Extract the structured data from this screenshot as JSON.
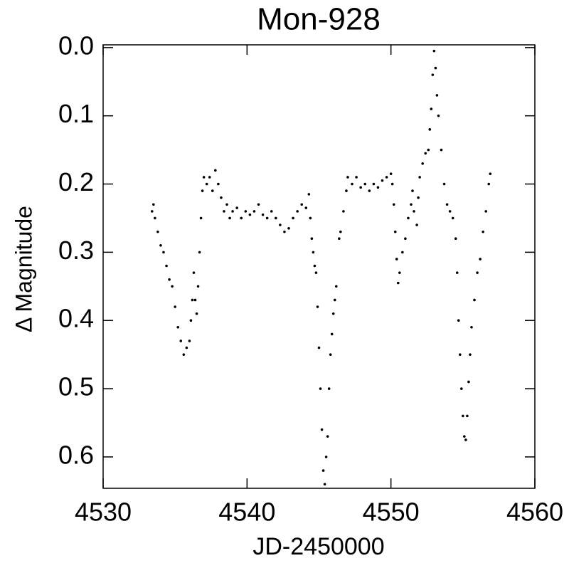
{
  "chart_data": {
    "type": "scatter",
    "title": "Mon-928",
    "xlabel": "JD-2450000",
    "ylabel": "Δ Magnitude",
    "color": "#000000",
    "y_reversed": true,
    "xlim": [
      4530,
      4560
    ],
    "xticks": [
      4530,
      4540,
      4550,
      4560
    ],
    "ylim": [
      -0.004,
      0.646
    ],
    "yticks": [
      {
        "value": 0,
        "label": "0.0"
      },
      0.1,
      0.2,
      0.3,
      0.4,
      0.5,
      0.6
    ],
    "x": [
      4533.4,
      4533.5,
      4533.6,
      4533.8,
      4534.0,
      4534.2,
      4534.4,
      4534.6,
      4534.8,
      4535.0,
      4535.2,
      4535.4,
      4535.6,
      4535.8,
      4536.0,
      4536.1,
      4536.2,
      4536.3,
      4536.4,
      4536.5,
      4536.6,
      4536.7,
      4536.8,
      4536.9,
      4537.0,
      4537.2,
      4537.4,
      4537.6,
      4537.8,
      4538.0,
      4538.2,
      4538.4,
      4538.6,
      4538.8,
      4539.0,
      4539.3,
      4539.6,
      4539.9,
      4540.2,
      4540.5,
      4540.8,
      4541.1,
      4541.4,
      4541.7,
      4542.0,
      4542.3,
      4542.6,
      4542.9,
      4543.2,
      4543.5,
      4543.8,
      4544.1,
      4544.3,
      4544.4,
      4544.5,
      4544.6,
      4544.7,
      4544.8,
      4544.9,
      4545.0,
      4545.1,
      4545.2,
      4545.3,
      4545.4,
      4545.5,
      4545.6,
      4545.7,
      4545.8,
      4545.9,
      4546.0,
      4546.1,
      4546.2,
      4546.4,
      4546.5,
      4546.7,
      4546.9,
      4547.0,
      4547.3,
      4547.6,
      4547.9,
      4548.2,
      4548.5,
      4548.8,
      4549.1,
      4549.4,
      4549.7,
      4550.0,
      4550.1,
      4550.2,
      4550.3,
      4550.4,
      4550.5,
      4550.6,
      4550.8,
      4551.0,
      4551.2,
      4551.4,
      4551.5,
      4551.6,
      4551.8,
      4551.9,
      4552.0,
      4552.2,
      4552.4,
      4552.6,
      4552.7,
      4552.8,
      4552.9,
      4553.0,
      4553.1,
      4553.2,
      4553.3,
      4553.5,
      4553.7,
      4553.9,
      4554.1,
      4554.3,
      4554.5,
      4554.6,
      4554.7,
      4554.8,
      4554.9,
      4555.0,
      4555.1,
      4555.2,
      4555.3,
      4555.4,
      4555.5,
      4555.6,
      4555.8,
      4556.0,
      4556.2,
      4556.4,
      4556.6,
      4556.8,
      4556.9
    ],
    "values": [
      0.24,
      0.23,
      0.25,
      0.27,
      0.29,
      0.3,
      0.32,
      0.34,
      0.35,
      0.38,
      0.41,
      0.43,
      0.45,
      0.44,
      0.43,
      0.4,
      0.37,
      0.33,
      0.37,
      0.39,
      0.35,
      0.3,
      0.25,
      0.21,
      0.19,
      0.2,
      0.19,
      0.21,
      0.18,
      0.2,
      0.22,
      0.24,
      0.23,
      0.25,
      0.24,
      0.235,
      0.25,
      0.24,
      0.245,
      0.24,
      0.23,
      0.245,
      0.25,
      0.24,
      0.25,
      0.26,
      0.27,
      0.265,
      0.25,
      0.24,
      0.23,
      0.235,
      0.215,
      0.25,
      0.28,
      0.3,
      0.32,
      0.33,
      0.38,
      0.44,
      0.5,
      0.56,
      0.62,
      0.64,
      0.6,
      0.57,
      0.5,
      0.45,
      0.42,
      0.39,
      0.37,
      0.35,
      0.28,
      0.27,
      0.24,
      0.21,
      0.19,
      0.2,
      0.19,
      0.205,
      0.2,
      0.21,
      0.2,
      0.205,
      0.195,
      0.19,
      0.185,
      0.2,
      0.23,
      0.27,
      0.31,
      0.345,
      0.33,
      0.3,
      0.28,
      0.25,
      0.23,
      0.21,
      0.24,
      0.26,
      0.22,
      0.19,
      0.17,
      0.155,
      0.15,
      0.12,
      0.09,
      0.04,
      0.005,
      0.03,
      0.07,
      0.1,
      0.15,
      0.2,
      0.23,
      0.24,
      0.25,
      0.28,
      0.33,
      0.4,
      0.45,
      0.5,
      0.54,
      0.57,
      0.575,
      0.54,
      0.49,
      0.45,
      0.41,
      0.37,
      0.33,
      0.31,
      0.27,
      0.24,
      0.2,
      0.185
    ]
  }
}
